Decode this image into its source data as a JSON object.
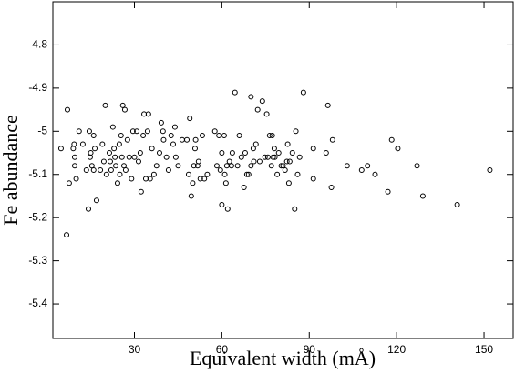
{
  "chart_data": {
    "type": "scatter",
    "xlabel": "Equivalent width (mÅ)",
    "ylabel": "Fe abundance",
    "xlim": [
      2,
      160
    ],
    "ylim": [
      -5.48,
      -4.7
    ],
    "xticks": [
      30,
      60,
      90,
      120,
      150
    ],
    "yticks": [
      -5.4,
      -5.3,
      -5.2,
      -5.1,
      -5,
      -4.9,
      -4.8
    ],
    "color": "#000000",
    "x": [
      4.8,
      7,
      6.7,
      7.6,
      9,
      9.3,
      9.5,
      9.5,
      10,
      11,
      12.3,
      13.5,
      14.2,
      14.5,
      14.8,
      15,
      15.4,
      16,
      16,
      16.4,
      17,
      18.3,
      19,
      19.5,
      20,
      20.4,
      21.4,
      21.7,
      22,
      22.6,
      23,
      23.3,
      23.6,
      24.2,
      24.8,
      25,
      25.4,
      25.7,
      26,
      26.4,
      26.7,
      27,
      27.6,
      28.2,
      29,
      29.5,
      30,
      30.8,
      31.4,
      32,
      32.3,
      33,
      33.3,
      33.9,
      34.5,
      34.8,
      35.4,
      36,
      36.7,
      37.6,
      38.6,
      39.2,
      39.8,
      40,
      41,
      41.7,
      42.6,
      43.3,
      43.9,
      44.2,
      45,
      46.4,
      48,
      48.6,
      49,
      49.5,
      50,
      50.4,
      50.8,
      51,
      51.7,
      52,
      52.6,
      53.3,
      54,
      55,
      57.6,
      58.3,
      59,
      59.5,
      60,
      60,
      60.8,
      61,
      61.4,
      61.7,
      62,
      62.6,
      63.3,
      63.6,
      64.5,
      65.4,
      66,
      66.7,
      67.6,
      68,
      68.6,
      69.2,
      70,
      70,
      70.8,
      71,
      71.7,
      72.3,
      73,
      73.9,
      74.8,
      75.4,
      75.8,
      76.4,
      77,
      77.3,
      77.6,
      78,
      78.2,
      79,
      79.5,
      80.4,
      81,
      81.7,
      82.3,
      82.6,
      83,
      83.3,
      84.2,
      85,
      85.4,
      86,
      86.7,
      88,
      91.4,
      91.4,
      95.8,
      96.4,
      97.6,
      98,
      103,
      108,
      110,
      112.6,
      117,
      118.3,
      120.4,
      127,
      129,
      140.8,
      152
    ],
    "values": [
      -5.04,
      -4.95,
      -5.24,
      -5.12,
      -5.04,
      -5.03,
      -5.08,
      -5.06,
      -5.11,
      -5.0,
      -5.03,
      -5.09,
      -5.18,
      -5.0,
      -5.06,
      -5.05,
      -5.08,
      -5.01,
      -5.09,
      -5.04,
      -5.16,
      -5.09,
      -5.03,
      -5.07,
      -4.94,
      -5.1,
      -5.05,
      -5.07,
      -5.09,
      -4.99,
      -5.04,
      -5.06,
      -5.08,
      -5.12,
      -5.03,
      -5.1,
      -5.01,
      -5.06,
      -4.94,
      -5.08,
      -4.95,
      -5.09,
      -5.02,
      -5.06,
      -5.11,
      -5.0,
      -5.06,
      -5.0,
      -5.07,
      -5.05,
      -5.14,
      -5.01,
      -4.96,
      -5.11,
      -5.0,
      -4.96,
      -5.11,
      -5.04,
      -5.1,
      -5.08,
      -5.05,
      -4.98,
      -5.0,
      -5.02,
      -5.06,
      -5.09,
      -5.01,
      -5.03,
      -4.99,
      -5.06,
      -5.08,
      -5.02,
      -5.02,
      -5.1,
      -4.97,
      -5.15,
      -5.12,
      -5.08,
      -5.04,
      -5.02,
      -5.08,
      -5.07,
      -5.11,
      -5.01,
      -5.11,
      -5.1,
      -5.0,
      -5.08,
      -5.01,
      -5.09,
      -5.05,
      -5.17,
      -5.01,
      -5.1,
      -5.12,
      -5.08,
      -5.18,
      -5.07,
      -5.08,
      -5.05,
      -4.91,
      -5.08,
      -5.01,
      -5.06,
      -5.13,
      -5.05,
      -5.1,
      -5.1,
      -5.08,
      -4.92,
      -5.04,
      -5.07,
      -5.03,
      -4.95,
      -5.07,
      -4.93,
      -5.06,
      -4.96,
      -5.06,
      -5.01,
      -5.08,
      -5.01,
      -5.06,
      -5.04,
      -5.06,
      -5.1,
      -5.05,
      -5.08,
      -5.08,
      -5.09,
      -5.07,
      -5.03,
      -5.12,
      -5.07,
      -5.05,
      -5.18,
      -5.0,
      -5.1,
      -5.06,
      -4.91,
      -5.04,
      -5.11,
      -5.05,
      -4.94,
      -5.13,
      -5.02,
      -5.08,
      -5.09,
      -5.08,
      -5.1,
      -5.14,
      -5.02,
      -5.04,
      -5.08,
      -5.15,
      -5.17,
      -5.09
    ]
  }
}
